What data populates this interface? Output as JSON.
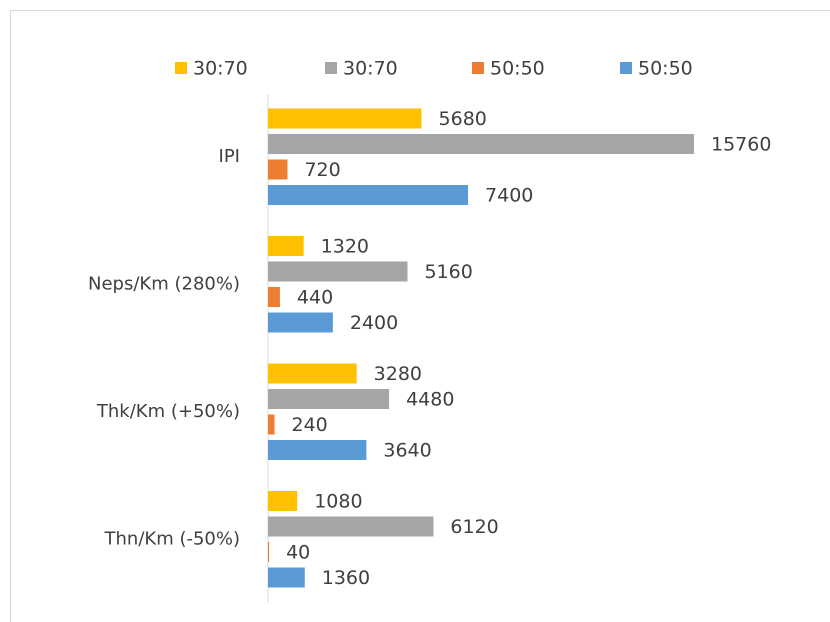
{
  "chart_data": {
    "type": "bar",
    "orientation": "horizontal",
    "categories": [
      "IPI",
      "Neps/Km (280%)",
      "Thk/Km (+50%)",
      "Thn/Km (-50%)"
    ],
    "series": [
      {
        "name": "30:70",
        "color": "#ffc000",
        "values": [
          5680,
          1320,
          3280,
          1080
        ]
      },
      {
        "name": "30:70",
        "color": "#a5a5a5",
        "values": [
          15760,
          5160,
          4480,
          6120
        ]
      },
      {
        "name": "50:50",
        "color": "#ed7d31",
        "values": [
          720,
          440,
          240,
          40
        ]
      },
      {
        "name": "50:50",
        "color": "#5b9bd5",
        "values": [
          7400,
          2400,
          3640,
          1360
        ]
      }
    ],
    "xlim": [
      0,
      20000
    ],
    "legend": "top"
  }
}
